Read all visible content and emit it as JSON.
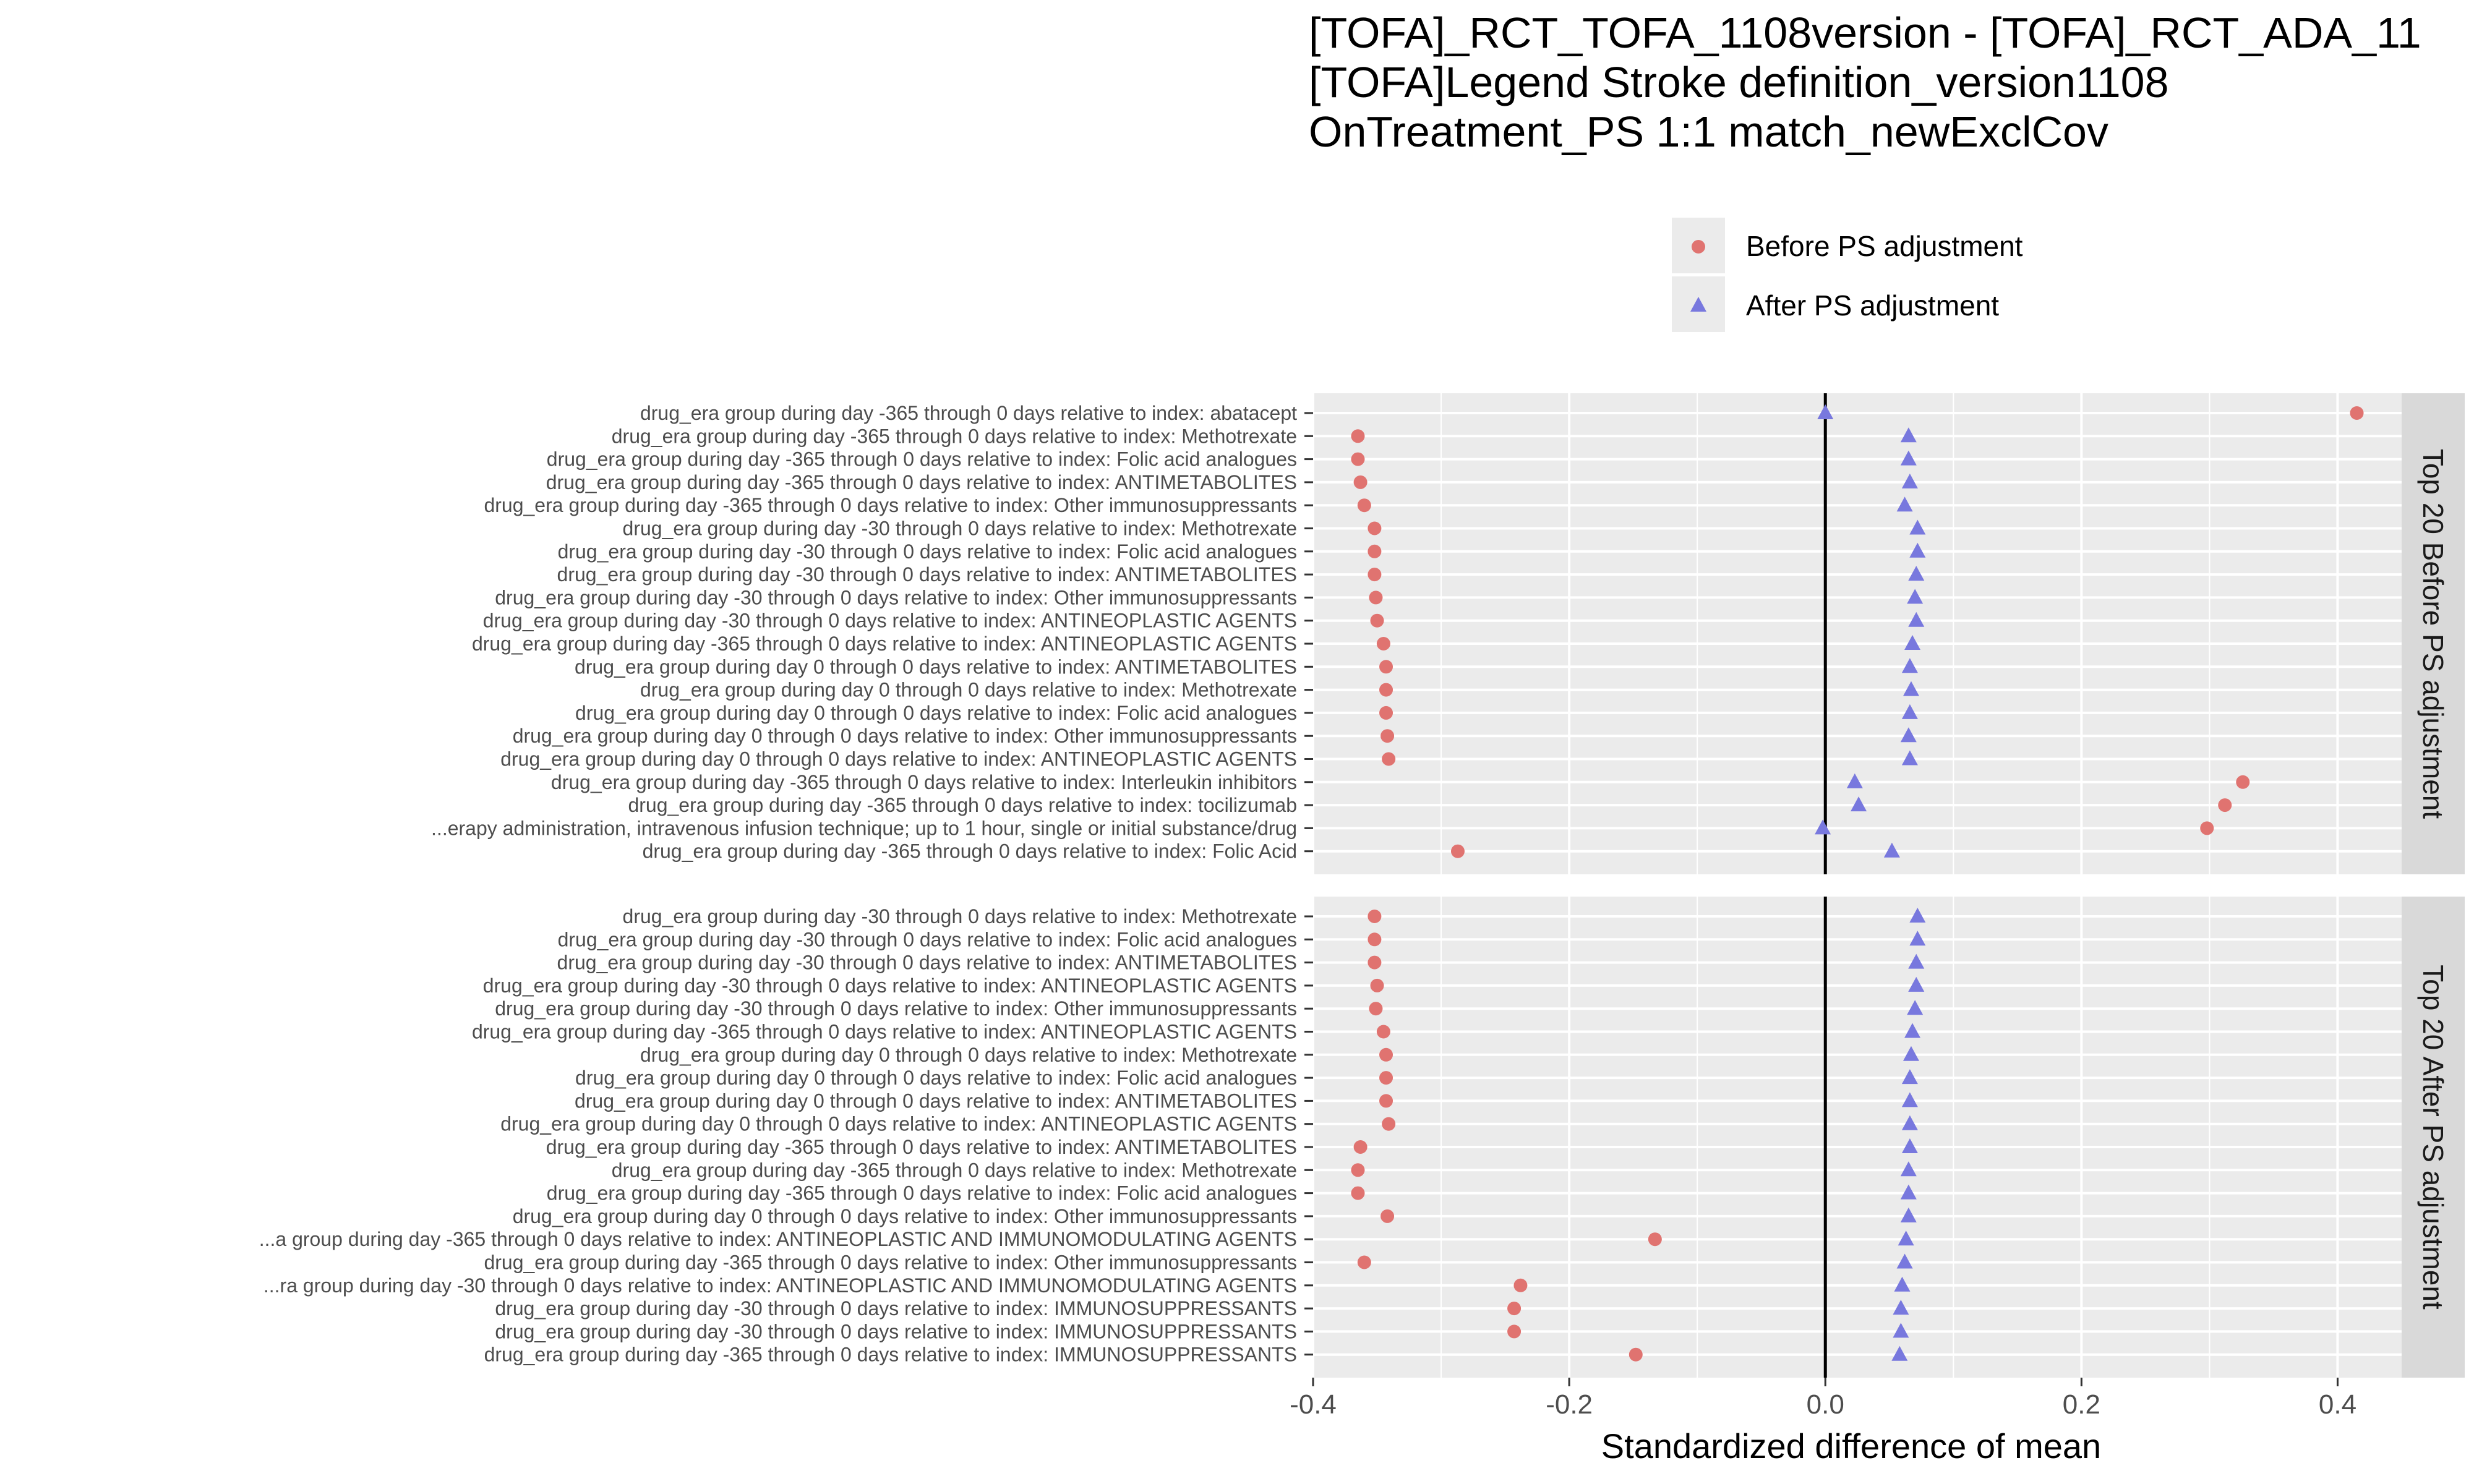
{
  "chart_data": {
    "type": "scatter",
    "title_lines": [
      "[TOFA]_RCT_TOFA_1108version - [TOFA]_RCT_ADA_11",
      "[TOFA]Legend Stroke definition_version1108",
      "OnTreatment_PS 1:1 match_newExclCov"
    ],
    "xlabel": "Standardized difference of mean",
    "xlim": [
      -0.4,
      0.45
    ],
    "xticks": [
      -0.4,
      -0.2,
      0.0,
      0.2,
      0.4
    ],
    "xtick_labels": [
      "-0.4",
      "-0.2",
      "0.0",
      "0.2",
      "0.4"
    ],
    "reference_line_x": 0,
    "legend": {
      "position": "top",
      "entries": [
        {
          "label": "Before PS adjustment",
          "marker": "circle",
          "color": "#e07370"
        },
        {
          "label": "After PS adjustment",
          "marker": "triangle",
          "color": "#7878de"
        }
      ]
    },
    "colors": {
      "before": "#e07370",
      "after": "#7878de",
      "panel_bg": "#ebebeb",
      "strip_bg": "#d9d9d9"
    },
    "panels": [
      {
        "strip_label": "Top 20 Before PS adjustment",
        "rows": [
          {
            "label": "drug_era group during day -365 through 0 days relative to index: abatacept",
            "before": 0.415,
            "after": 0.0
          },
          {
            "label": "drug_era group during day -365 through 0 days relative to index: Methotrexate",
            "before": -0.365,
            "after": 0.065
          },
          {
            "label": "drug_era group during day -365 through 0 days relative to index: Folic acid analogues",
            "before": -0.365,
            "after": 0.065
          },
          {
            "label": "drug_era group during day -365 through 0 days relative to index: ANTIMETABOLITES",
            "before": -0.363,
            "after": 0.066
          },
          {
            "label": "drug_era group during day -365 through 0 days relative to index: Other immunosuppressants",
            "before": -0.36,
            "after": 0.062
          },
          {
            "label": "drug_era group during day -30 through 0 days relative to index: Methotrexate",
            "before": -0.352,
            "after": 0.072
          },
          {
            "label": "drug_era group during day -30 through 0 days relative to index: Folic acid analogues",
            "before": -0.352,
            "after": 0.072
          },
          {
            "label": "drug_era group during day -30 through 0 days relative to index: ANTIMETABOLITES",
            "before": -0.352,
            "after": 0.071
          },
          {
            "label": "drug_era group during day -30 through 0 days relative to index: Other immunosuppressants",
            "before": -0.351,
            "after": 0.07
          },
          {
            "label": "drug_era group during day -30 through 0 days relative to index: ANTINEOPLASTIC AGENTS",
            "before": -0.35,
            "after": 0.071
          },
          {
            "label": "drug_era group during day -365 through 0 days relative to index: ANTINEOPLASTIC AGENTS",
            "before": -0.345,
            "after": 0.068
          },
          {
            "label": "drug_era group during day 0 through 0 days relative to index: ANTIMETABOLITES",
            "before": -0.343,
            "after": 0.066
          },
          {
            "label": "drug_era group during day 0 through 0 days relative to index: Methotrexate",
            "before": -0.343,
            "after": 0.067
          },
          {
            "label": "drug_era group during day 0 through 0 days relative to index: Folic acid analogues",
            "before": -0.343,
            "after": 0.066
          },
          {
            "label": "drug_era group during day 0 through 0 days relative to index: Other immunosuppressants",
            "before": -0.342,
            "after": 0.065
          },
          {
            "label": "drug_era group during day 0 through 0 days relative to index: ANTINEOPLASTIC AGENTS",
            "before": -0.341,
            "after": 0.066
          },
          {
            "label": "drug_era group during day -365 through 0 days relative to index: Interleukin inhibitors",
            "before": 0.326,
            "after": 0.023
          },
          {
            "label": "drug_era group during day -365 through 0 days relative to index: tocilizumab",
            "before": 0.312,
            "after": 0.026
          },
          {
            "label": "...erapy administration, intravenous infusion technique; up to 1 hour, single or initial substance/drug",
            "before": 0.298,
            "after": -0.002
          },
          {
            "label": "drug_era group during day -365 through 0 days relative to index: Folic Acid",
            "before": -0.287,
            "after": 0.052
          }
        ]
      },
      {
        "strip_label": "Top 20 After PS adjustment",
        "rows": [
          {
            "label": "drug_era group during day -30 through 0 days relative to index: Methotrexate",
            "before": -0.352,
            "after": 0.072
          },
          {
            "label": "drug_era group during day -30 through 0 days relative to index: Folic acid analogues",
            "before": -0.352,
            "after": 0.072
          },
          {
            "label": "drug_era group during day -30 through 0 days relative to index: ANTIMETABOLITES",
            "before": -0.352,
            "after": 0.071
          },
          {
            "label": "drug_era group during day -30 through 0 days relative to index: ANTINEOPLASTIC AGENTS",
            "before": -0.35,
            "after": 0.071
          },
          {
            "label": "drug_era group during day -30 through 0 days relative to index: Other immunosuppressants",
            "before": -0.351,
            "after": 0.07
          },
          {
            "label": "drug_era group during day -365 through 0 days relative to index: ANTINEOPLASTIC AGENTS",
            "before": -0.345,
            "after": 0.068
          },
          {
            "label": "drug_era group during day 0 through 0 days relative to index: Methotrexate",
            "before": -0.343,
            "after": 0.067
          },
          {
            "label": "drug_era group during day 0 through 0 days relative to index: Folic acid analogues",
            "before": -0.343,
            "after": 0.066
          },
          {
            "label": "drug_era group during day 0 through 0 days relative to index: ANTIMETABOLITES",
            "before": -0.343,
            "after": 0.066
          },
          {
            "label": "drug_era group during day 0 through 0 days relative to index: ANTINEOPLASTIC AGENTS",
            "before": -0.341,
            "after": 0.066
          },
          {
            "label": "drug_era group during day -365 through 0 days relative to index: ANTIMETABOLITES",
            "before": -0.363,
            "after": 0.066
          },
          {
            "label": "drug_era group during day -365 through 0 days relative to index: Methotrexate",
            "before": -0.365,
            "after": 0.065
          },
          {
            "label": "drug_era group during day -365 through 0 days relative to index: Folic acid analogues",
            "before": -0.365,
            "after": 0.065
          },
          {
            "label": "drug_era group during day 0 through 0 days relative to index: Other immunosuppressants",
            "before": -0.342,
            "after": 0.065
          },
          {
            "label": "...a group during day -365 through 0 days relative to index: ANTINEOPLASTIC AND IMMUNOMODULATING AGENTS",
            "before": -0.133,
            "after": 0.063
          },
          {
            "label": "drug_era group during day -365 through 0 days relative to index: Other immunosuppressants",
            "before": -0.36,
            "after": 0.062
          },
          {
            "label": "...ra group during day -30 through 0 days relative to index: ANTINEOPLASTIC AND IMMUNOMODULATING AGENTS",
            "before": -0.238,
            "after": 0.06
          },
          {
            "label": "drug_era group during day -30 through 0 days relative to index: IMMUNOSUPPRESSANTS",
            "before": -0.243,
            "after": 0.059
          },
          {
            "label": "drug_era group during day -30 through 0 days relative to index: IMMUNOSUPPRESSANTS",
            "before": -0.243,
            "after": 0.059
          },
          {
            "label": "drug_era group during day -365 through 0 days relative to index: IMMUNOSUPPRESSANTS",
            "before": -0.148,
            "after": 0.058
          }
        ]
      }
    ]
  }
}
